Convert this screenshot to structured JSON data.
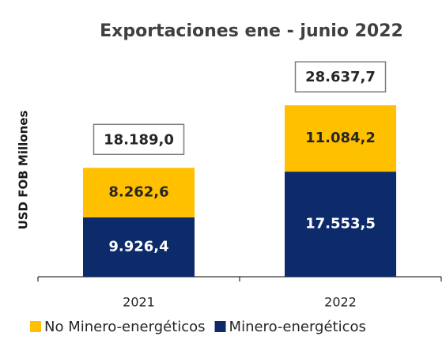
{
  "chart_data": {
    "type": "stacked_bar",
    "title": "Exportaciones ene - junio 2022",
    "y_label": "USD FOB Millones",
    "categories": [
      "2021",
      "2022"
    ],
    "series": [
      {
        "name": "No Minero-energéticos",
        "color": "#FFC000",
        "values": [
          8262.6,
          11084.2
        ],
        "value_labels": [
          "8.262,6",
          "11.084,2"
        ],
        "label_color": "#262626"
      },
      {
        "name": "Minero-energéticos",
        "color": "#0D2A6B",
        "values": [
          9926.4,
          17553.5
        ],
        "value_labels": [
          "9.926,4",
          "17.553,5"
        ],
        "label_color": "#ffffff"
      }
    ],
    "totals": [
      18189.0,
      28637.7
    ],
    "total_labels": [
      "18.189,0",
      "28.637,7"
    ],
    "ylim": [
      0,
      35000
    ],
    "legend": "bottom"
  }
}
